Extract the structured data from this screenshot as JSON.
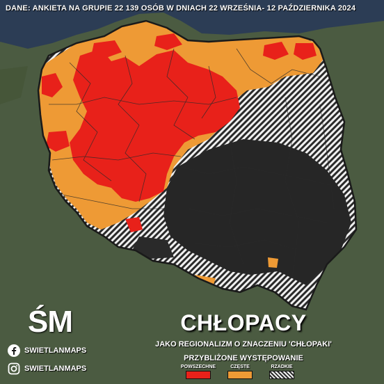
{
  "source_note": "DANE: ANKIETA NA GRUPIE 22 139 OSÓB W DNIACH 22 WRZEŚNIA- 12 PAŹDZIERNIKA 2024",
  "title": "CHŁOPACY",
  "subtitle": "JAKO REGIONALIZM O ZNACZENIU 'CHŁOPAKI'",
  "logo": "ŚM",
  "social": {
    "facebook": "SWIETLANMAPS",
    "instagram": "SWIETLANMAPS"
  },
  "legend": {
    "title": "PRZYBLIŻONE WYSTĘPOWANIE",
    "items": [
      {
        "label": "POWSZECHNE",
        "color": "#e8211a"
      },
      {
        "label": "CZĘSTE",
        "color": "#ee9a35"
      },
      {
        "label": "RZADKIE",
        "color": "hatched"
      }
    ]
  },
  "colors": {
    "background": "#4b5b41",
    "sea": "#2c3d55",
    "common": "#e8211a",
    "frequent": "#ee9a35",
    "none": "#1e1e1e"
  },
  "icons": [
    "facebook-icon",
    "instagram-icon"
  ]
}
